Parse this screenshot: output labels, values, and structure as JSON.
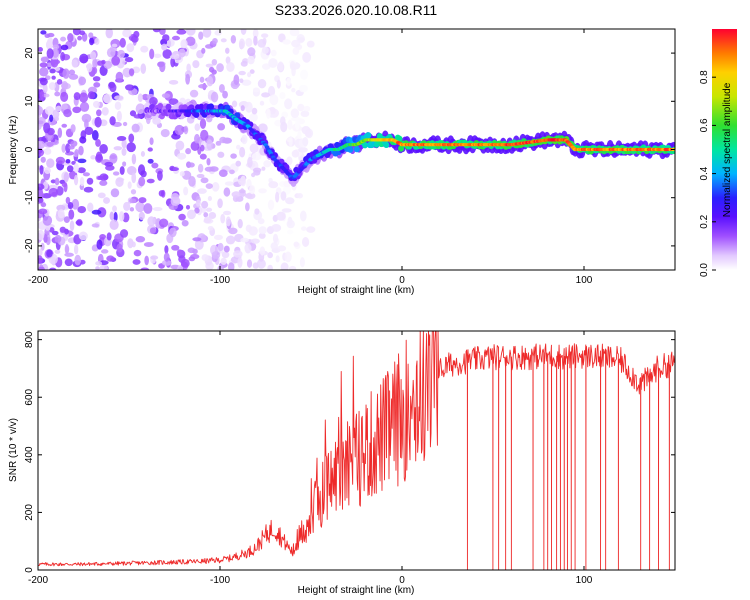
{
  "title": "S233.2026.020.10.08.R11",
  "chart_data": [
    {
      "type": "heatmap",
      "xlabel": "Height of straight line (km)",
      "ylabel": "Frequency (Hz)",
      "xlim": [
        -200,
        150
      ],
      "ylim": [
        -25,
        25
      ],
      "xticks": [
        -200,
        -100,
        0,
        100
      ],
      "xtick_labels": [
        "-200",
        "-100",
        "0",
        "100"
      ],
      "yticks": [
        20,
        10,
        0,
        -10,
        -20
      ],
      "ytick_labels": [
        "20",
        "10",
        "0",
        "-10",
        "-20"
      ],
      "ridge": {
        "x": [
          -140,
          -125,
          -115,
          -105,
          -97,
          -90,
          -85,
          -80,
          -75,
          -70,
          -65,
          -60,
          -55,
          -50,
          -45,
          -40,
          -35,
          -30,
          -25,
          -20,
          -15,
          -10,
          -5,
          0,
          20,
          40,
          60,
          80,
          90,
          95,
          100,
          120,
          150
        ],
        "freq": [
          8,
          8,
          8,
          8,
          8,
          6,
          5,
          3,
          1,
          -2,
          -4,
          -6,
          -4,
          -2,
          -1,
          0,
          0,
          1,
          1,
          2,
          2,
          2,
          2,
          1,
          1,
          1,
          1,
          2,
          2,
          0,
          0,
          0,
          0
        ],
        "amplitude": [
          0.15,
          0.2,
          0.3,
          0.35,
          0.45,
          0.4,
          0.35,
          0.3,
          0.3,
          0.3,
          0.3,
          0.3,
          0.3,
          0.35,
          0.4,
          0.45,
          0.5,
          0.55,
          0.6,
          0.7,
          0.75,
          0.8,
          0.85,
          0.9,
          0.9,
          0.9,
          0.95,
          0.95,
          0.95,
          0.9,
          0.9,
          0.9,
          0.9
        ]
      },
      "noise_region": {
        "x_from": -200,
        "x_to": -90,
        "amplitude_max": 0.15
      },
      "colorbar": {
        "label": "Normalized spectral amplitude",
        "range": [
          0.0,
          1.0
        ],
        "ticks": [
          0.0,
          0.2,
          0.4,
          0.6,
          0.8
        ],
        "tick_labels": [
          "0.0",
          "0.2",
          "0.4",
          "0.6",
          "0.8"
        ],
        "colormap": [
          "#ffffff",
          "#d9b8ff",
          "#8c2be8",
          "#3a00ff",
          "#00c8ff",
          "#00e676",
          "#a8e600",
          "#ffd400",
          "#ff7a00",
          "#ff1a1a"
        ]
      }
    },
    {
      "type": "line",
      "xlabel": "Height of straight line (km)",
      "ylabel": "SNR (10 * v/v)",
      "xlim": [
        -200,
        150
      ],
      "ylim": [
        0,
        830
      ],
      "xticks": [
        -200,
        -100,
        0,
        100
      ],
      "xtick_labels": [
        "-200",
        "-100",
        "0",
        "100"
      ],
      "yticks": [
        0,
        200,
        400,
        600,
        800
      ],
      "ytick_labels": [
        "0",
        "200",
        "400",
        "600",
        "800"
      ],
      "series": [
        {
          "name": "SNR",
          "color": "#ee2a2a",
          "envelope_x": [
            -200,
            -180,
            -160,
            -140,
            -120,
            -110,
            -100,
            -95,
            -90,
            -85,
            -80,
            -75,
            -70,
            -65,
            -60,
            -55,
            -50,
            -45,
            -40,
            -35,
            -30,
            -25,
            -20,
            -15,
            -10,
            -5,
            0,
            5,
            10,
            15,
            20,
            25,
            30,
            40,
            50,
            60,
            70,
            80,
            90,
            100,
            110,
            120,
            125,
            130,
            135,
            140,
            150
          ],
          "envelope_y": [
            20,
            20,
            22,
            25,
            28,
            30,
            35,
            40,
            50,
            60,
            80,
            120,
            150,
            100,
            60,
            130,
            180,
            260,
            300,
            340,
            390,
            380,
            420,
            440,
            470,
            500,
            540,
            580,
            620,
            660,
            690,
            710,
            720,
            730,
            740,
            740,
            740,
            745,
            740,
            745,
            740,
            730,
            690,
            650,
            660,
            700,
            720
          ],
          "dropout_x": [
            36,
            50,
            53,
            57,
            60,
            72,
            78,
            80,
            82,
            85,
            87,
            89,
            91,
            93,
            95,
            101,
            109,
            112,
            119,
            131,
            136,
            141,
            147
          ]
        }
      ]
    }
  ]
}
